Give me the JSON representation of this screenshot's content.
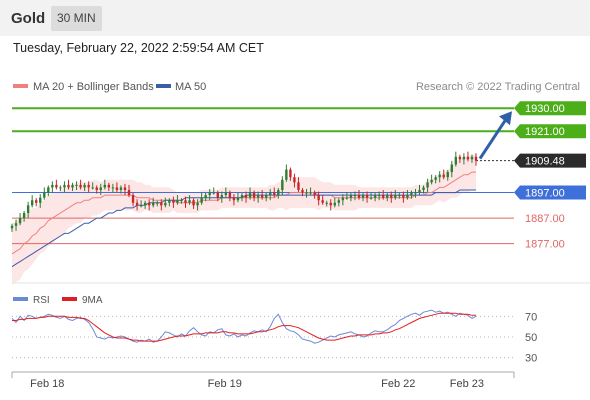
{
  "header": {
    "symbol": "Gold",
    "timeframe": "30 MIN"
  },
  "timestamp": "Tuesday, February 22, 2022 2:59:54 AM CET",
  "legend": {
    "bollinger": "MA 20 + Bollinger Bands",
    "ma50": "MA 50",
    "credit": "Research © 2022 Trading Central"
  },
  "colors": {
    "up": "#2e7d32",
    "down": "#c62828",
    "ma20": "#f08080",
    "ma50": "#3b5ea8",
    "bands": "#fde2e2",
    "resistance": "#4caf1a",
    "support": "#e06666",
    "pivot": "#3f6fd8",
    "arrow": "#2f5fa8",
    "rsi": "#6b8ad6",
    "rsi_ma": "#e02020"
  },
  "chart_data": [
    {
      "type": "candlestick",
      "ylim": [
        1862,
        1934
      ],
      "x_ticks": [
        {
          "index": 8,
          "label": "Feb 18"
        },
        {
          "index": 52,
          "label": "Feb 19"
        },
        {
          "index": 95,
          "label": "Feb 22"
        },
        {
          "index": 112,
          "label": "Feb 23"
        }
      ],
      "levels": [
        {
          "value": 1930.0,
          "label": "1930.00",
          "kind": "resistance"
        },
        {
          "value": 1921.0,
          "label": "1921.00",
          "kind": "resistance"
        },
        {
          "value": 1909.48,
          "label": "1909.48",
          "kind": "last"
        },
        {
          "value": 1897.0,
          "label": "1897.00",
          "kind": "pivot"
        },
        {
          "value": 1887.0,
          "label": "1887.00",
          "kind": "support"
        },
        {
          "value": 1877.0,
          "label": "1877.00",
          "kind": "support"
        }
      ],
      "close": [
        1884,
        1885,
        1887,
        1889,
        1892,
        1894,
        1893,
        1895,
        1897,
        1899,
        1900,
        1899,
        1899,
        1900,
        1899,
        1900,
        1900,
        1899,
        1900,
        1899,
        1899,
        1898,
        1899,
        1900,
        1899,
        1899,
        1898,
        1899,
        1898,
        1896,
        1893,
        1892,
        1892,
        1893,
        1892,
        1893,
        1893,
        1892,
        1893,
        1894,
        1893,
        1894,
        1894,
        1893,
        1894,
        1892,
        1893,
        1895,
        1896,
        1897,
        1897,
        1895,
        1896,
        1897,
        1895,
        1894,
        1895,
        1896,
        1895,
        1897,
        1895,
        1896,
        1895,
        1896,
        1897,
        1896,
        1898,
        1902,
        1906,
        1903,
        1901,
        1898,
        1897,
        1897,
        1897,
        1896,
        1894,
        1893,
        1893,
        1892,
        1893,
        1894,
        1895,
        1895,
        1896,
        1896,
        1895,
        1896,
        1895,
        1895,
        1896,
        1896,
        1895,
        1896,
        1895,
        1896,
        1896,
        1895,
        1896,
        1897,
        1897,
        1898,
        1899,
        1901,
        1902,
        1903,
        1904,
        1903,
        1905,
        1908,
        1911,
        1910,
        1911,
        1910,
        1911,
        1909.5
      ],
      "ma20": [
        1873,
        1874,
        1875,
        1877,
        1878,
        1880,
        1881,
        1883,
        1884,
        1886,
        1887,
        1888,
        1889,
        1890,
        1891,
        1892,
        1893,
        1893,
        1894,
        1894,
        1895,
        1895,
        1895,
        1896,
        1896,
        1896,
        1896,
        1896,
        1896,
        1896,
        1896,
        1895,
        1895,
        1895,
        1895,
        1894,
        1894,
        1894,
        1894,
        1894,
        1894,
        1893,
        1893,
        1893,
        1893,
        1893,
        1893,
        1894,
        1894,
        1894,
        1894,
        1894,
        1895,
        1895,
        1895,
        1895,
        1895,
        1895,
        1895,
        1895,
        1895,
        1895,
        1895,
        1895,
        1895,
        1895,
        1896,
        1896,
        1896,
        1897,
        1897,
        1897,
        1897,
        1897,
        1897,
        1897,
        1896,
        1896,
        1896,
        1896,
        1895,
        1895,
        1895,
        1895,
        1895,
        1895,
        1895,
        1895,
        1895,
        1895,
        1895,
        1895,
        1895,
        1895,
        1895,
        1895,
        1895,
        1895,
        1895,
        1895,
        1896,
        1896,
        1896,
        1897,
        1897,
        1898,
        1899,
        1899,
        1900,
        1901,
        1902,
        1903,
        1904,
        1904,
        1905,
        1905
      ],
      "ma50": [
        1868,
        1869,
        1870,
        1871,
        1872,
        1873,
        1874,
        1875,
        1876,
        1877,
        1878,
        1879,
        1880,
        1881,
        1881,
        1882,
        1883,
        1884,
        1885,
        1885,
        1886,
        1887,
        1887,
        1888,
        1889,
        1889,
        1890,
        1890,
        1891,
        1891,
        1891,
        1892,
        1892,
        1892,
        1893,
        1893,
        1893,
        1893,
        1894,
        1894,
        1894,
        1894,
        1894,
        1895,
        1895,
        1895,
        1895,
        1895,
        1895,
        1895,
        1895,
        1895,
        1895,
        1895,
        1895,
        1895,
        1895,
        1895,
        1896,
        1896,
        1896,
        1896,
        1896,
        1896,
        1896,
        1896,
        1896,
        1896,
        1896,
        1896,
        1896,
        1896,
        1896,
        1896,
        1896,
        1896,
        1896,
        1896,
        1896,
        1896,
        1896,
        1896,
        1896,
        1896,
        1896,
        1896,
        1896,
        1896,
        1896,
        1896,
        1896,
        1896,
        1896,
        1896,
        1896,
        1896,
        1896,
        1896,
        1896,
        1896,
        1896,
        1896,
        1896,
        1896,
        1896,
        1897,
        1897,
        1897,
        1897,
        1897,
        1897,
        1898,
        1898,
        1898,
        1898,
        1898
      ],
      "bb_width": [
        12,
        12,
        12,
        11,
        11,
        11,
        10,
        10,
        10,
        10,
        10,
        9,
        9,
        9,
        8,
        8,
        8,
        8,
        7,
        7,
        7,
        7,
        6,
        6,
        6,
        6,
        6,
        6,
        6,
        6,
        6,
        6,
        6,
        5,
        5,
        5,
        5,
        5,
        5,
        5,
        4,
        4,
        4,
        4,
        4,
        4,
        4,
        4,
        4,
        4,
        4,
        4,
        4,
        4,
        4,
        4,
        4,
        4,
        4,
        4,
        4,
        4,
        4,
        4,
        5,
        5,
        5,
        5,
        6,
        6,
        6,
        6,
        6,
        6,
        6,
        6,
        6,
        5,
        5,
        5,
        5,
        5,
        5,
        5,
        5,
        5,
        4,
        4,
        4,
        4,
        4,
        4,
        4,
        4,
        4,
        4,
        4,
        4,
        4,
        4,
        4,
        4,
        4,
        5,
        5,
        5,
        5,
        6,
        6,
        6,
        7,
        7,
        7,
        7,
        7,
        7
      ]
    },
    {
      "type": "line",
      "ylim": [
        20,
        80
      ],
      "y_ticks": [
        70,
        50,
        30
      ],
      "legend": [
        "RSI",
        "9MA"
      ],
      "rsi": [
        68,
        64,
        70,
        66,
        71,
        70,
        68,
        69,
        70,
        72,
        71,
        69,
        68,
        70,
        67,
        66,
        68,
        69,
        67,
        64,
        58,
        50,
        49,
        48,
        50,
        49,
        50,
        51,
        50,
        48,
        46,
        45,
        47,
        46,
        48,
        45,
        46,
        50,
        55,
        54,
        52,
        50,
        53,
        51,
        56,
        59,
        55,
        52,
        51,
        55,
        54,
        57,
        58,
        52,
        51,
        53,
        50,
        52,
        51,
        54,
        56,
        55,
        57,
        55,
        60,
        68,
        72,
        64,
        58,
        56,
        55,
        52,
        48,
        47,
        46,
        44,
        45,
        47,
        49,
        51,
        50,
        52,
        53,
        54,
        55,
        53,
        52,
        50,
        51,
        54,
        56,
        55,
        55,
        57,
        60,
        62,
        66,
        68,
        70,
        72,
        73,
        71,
        74,
        75,
        76,
        74,
        75,
        73,
        74,
        72,
        70,
        73,
        72,
        71,
        68,
        70
      ],
      "rsi_ma": [
        66,
        66,
        67,
        67,
        68,
        68,
        68,
        69,
        69,
        70,
        70,
        70,
        70,
        70,
        69,
        69,
        69,
        68,
        68,
        66,
        63,
        60,
        57,
        54,
        52,
        50,
        49,
        49,
        49,
        48,
        47,
        47,
        46,
        46,
        46,
        46,
        46,
        47,
        48,
        49,
        50,
        51,
        51,
        51,
        52,
        53,
        53,
        53,
        54,
        54,
        54,
        54,
        55,
        55,
        54,
        54,
        53,
        53,
        53,
        53,
        54,
        55,
        55,
        56,
        57,
        58,
        60,
        61,
        61,
        61,
        60,
        59,
        57,
        55,
        53,
        51,
        49,
        48,
        47,
        47,
        47,
        48,
        49,
        50,
        51,
        51,
        52,
        52,
        52,
        52,
        53,
        53,
        54,
        54,
        55,
        57,
        58,
        60,
        62,
        64,
        66,
        68,
        69,
        70,
        71,
        72,
        73,
        73,
        73,
        73,
        73,
        72,
        72,
        72,
        71,
        71
      ]
    }
  ]
}
